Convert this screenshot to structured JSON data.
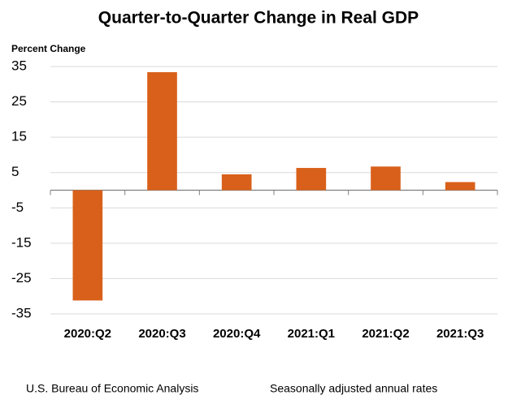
{
  "chart_data": {
    "type": "bar",
    "title": "Quarter-to-Quarter Change in Real GDP",
    "y_label": "Percent Change",
    "categories": [
      "2020:Q2",
      "2020:Q3",
      "2020:Q4",
      "2021:Q1",
      "2021:Q2",
      "2021:Q3"
    ],
    "values": [
      -31.2,
      33.4,
      4.5,
      6.3,
      6.7,
      2.3
    ],
    "color": "#d9601a",
    "ylim": [
      -35,
      35
    ],
    "yticks": [
      35,
      25,
      15,
      5,
      -5,
      -15,
      -25,
      -35
    ],
    "grid": true,
    "source": "U.S. Bureau of Economic Analysis",
    "note": "Seasonally adjusted annual rates"
  }
}
